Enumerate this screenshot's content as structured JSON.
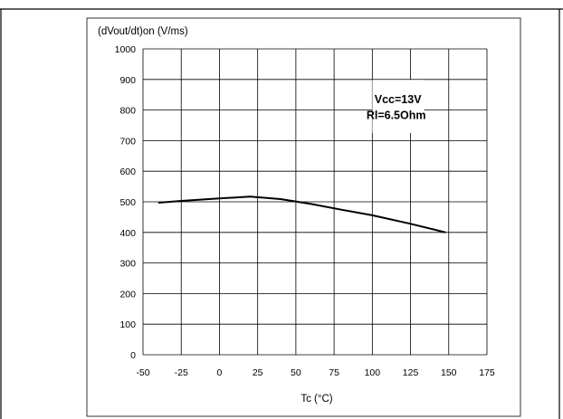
{
  "chart_data": {
    "type": "line",
    "title": "",
    "ylabel": "(dVout/dt)on (V/ms)",
    "xlabel": "Tc (°C)",
    "xlim": [
      -50,
      175
    ],
    "ylim": [
      0,
      1000
    ],
    "x_ticks": [
      -50,
      -25,
      0,
      25,
      50,
      75,
      100,
      125,
      150,
      175
    ],
    "y_ticks": [
      0,
      100,
      200,
      300,
      400,
      500,
      600,
      700,
      800,
      900,
      1000
    ],
    "grid": true,
    "annotations": [
      "Vcc=13V",
      "Rl=6.5Ohm"
    ],
    "series": [
      {
        "x": [
          -40,
          -25,
          0,
          20,
          40,
          60,
          80,
          100,
          125,
          148
        ],
        "y": [
          497,
          503,
          511,
          517,
          509,
          493,
          474,
          456,
          428,
          400
        ]
      }
    ]
  }
}
